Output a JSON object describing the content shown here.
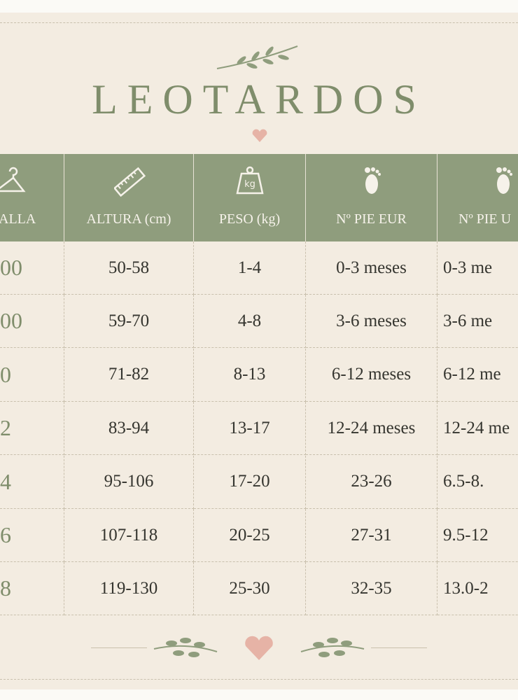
{
  "header": {
    "title": "LEOTARDOS"
  },
  "table": {
    "columns": [
      "ALLA",
      "ALTURA (cm)",
      "PESO (kg)",
      "Nº PIE EUR",
      "Nº PIE U"
    ],
    "rows": [
      [
        "00",
        "50-58",
        "1-4",
        "0-3 meses",
        "0-3 me"
      ],
      [
        "00",
        "59-70",
        "4-8",
        "3-6 meses",
        "3-6 me"
      ],
      [
        "0",
        "71-82",
        "8-13",
        "6-12 meses",
        "6-12 me"
      ],
      [
        "2",
        "83-94",
        "13-17",
        "12-24 meses",
        "12-24 me"
      ],
      [
        "4",
        "95-106",
        "17-20",
        "23-26",
        "6.5-8."
      ],
      [
        "6",
        "107-118",
        "20-25",
        "27-31",
        "9.5-12"
      ],
      [
        "8",
        "119-130",
        "25-30",
        "32-35",
        "13.0-2"
      ]
    ]
  }
}
